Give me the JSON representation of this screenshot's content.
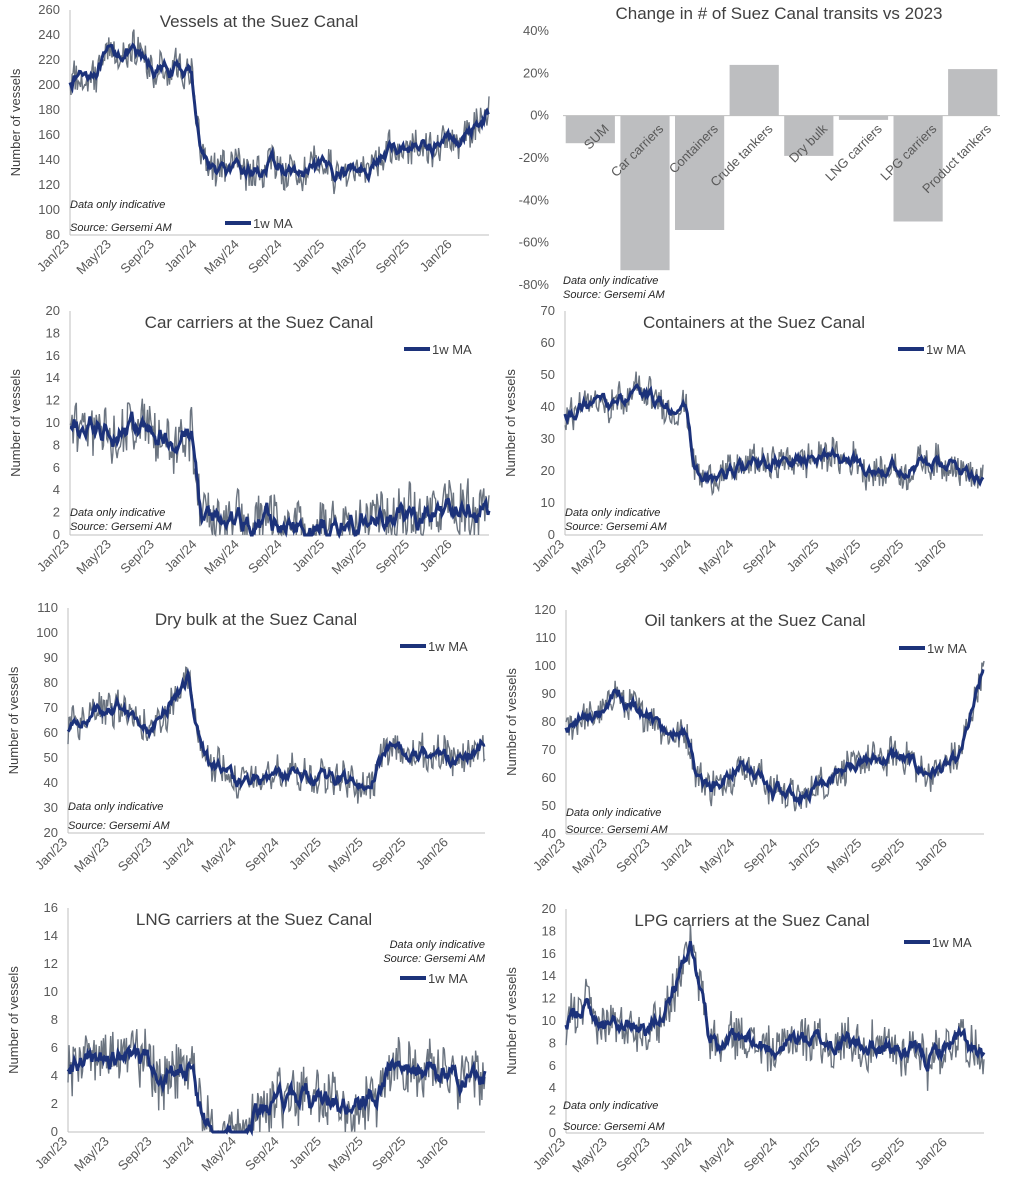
{
  "colors": {
    "raw": "#6b7480",
    "ma": "#1c327a",
    "bar": "#bdbec0",
    "axis": "#bfbfbf",
    "text": "#404040"
  },
  "bar_chart": {
    "type": "bar",
    "title": "Change in # of Suez Canal transits vs 2023",
    "categories": [
      "SUM",
      "Car carriers",
      "Containers",
      "Crude tankers",
      "Dry bulk",
      "LNG carriers",
      "LPG carriers",
      "Product tankers"
    ],
    "values": [
      -13,
      -73,
      -54,
      24,
      -19,
      -2,
      -50,
      22
    ],
    "ylim": [
      -80,
      40
    ],
    "ticks": [
      "40%",
      "20%",
      "0%",
      "-20%",
      "-40%",
      "-60%",
      "-80%"
    ],
    "notes": [
      "Data only indicative",
      "Source: Gersemi AM"
    ]
  },
  "chart_data": [
    {
      "type": "line",
      "title": "Vessels at the Suez Canal",
      "ylabel": "Number of vessels",
      "ylim": [
        80,
        260
      ],
      "yticks": [
        "80",
        "100",
        "120",
        "140",
        "160",
        "180",
        "200",
        "220",
        "240",
        "260"
      ],
      "xticks": [
        "Jan/23",
        "May/23",
        "Sep/23",
        "Jan/24",
        "May/24",
        "Sep/24",
        "Jan/25",
        "May/25",
        "Sep/25",
        "Jan/26"
      ],
      "legend": "1w MA",
      "legend_pos": "bottom-left",
      "notes": [
        "Data only indicative",
        "Source: Gersemi AM"
      ],
      "x_dates": [
        "2023-01-01",
        "2023-03-01",
        "2023-06-01",
        "2023-09-01",
        "2023-12-15",
        "2024-01-10",
        "2024-02-15",
        "2024-05-01",
        "2024-08-01",
        "2024-11-01",
        "2025-02-01",
        "2025-05-01",
        "2025-08-01",
        "2025-11-01",
        "2026-02-01",
        "2026-04-15"
      ],
      "series": [
        {
          "name": "1w MA",
          "values": [
            205,
            212,
            228,
            212,
            210,
            150,
            132,
            128,
            135,
            127,
            132,
            135,
            150,
            152,
            158,
            180
          ]
        }
      ],
      "noise": 14
    },
    {
      "type": "line",
      "title": "Car carriers at the Suez Canal",
      "ylabel": "Number of vessels",
      "ylim": [
        0,
        20
      ],
      "yticks": [
        "0",
        "2",
        "4",
        "6",
        "8",
        "10",
        "12",
        "14",
        "16",
        "18",
        "20"
      ],
      "xticks": [
        "Jan/23",
        "May/23",
        "Sep/23",
        "Jan/24",
        "May/24",
        "Sep/24",
        "Jan/25",
        "May/25",
        "Sep/25",
        "Jan/26"
      ],
      "legend": "1w MA",
      "legend_pos": "top-right",
      "notes": [
        "Data only indicative",
        "Source: Gersemi AM"
      ],
      "x_dates": [
        "2023-01-01",
        "2023-03-01",
        "2023-06-01",
        "2023-09-01",
        "2023-12-15",
        "2024-01-10",
        "2024-02-15",
        "2024-05-01",
        "2024-08-01",
        "2024-11-01",
        "2025-02-01",
        "2025-05-01",
        "2025-08-01",
        "2025-11-01",
        "2026-02-01",
        "2026-04-15"
      ],
      "series": [
        {
          "name": "1w MA",
          "values": [
            9,
            9.5,
            10,
            8.5,
            9,
            2,
            1,
            1,
            0.8,
            0.7,
            0.9,
            1.2,
            1.6,
            1.8,
            2,
            2.2
          ]
        }
      ],
      "noise": 2.5
    },
    {
      "type": "line",
      "title": "Containers at the Suez Canal",
      "ylabel": "Number of vessels",
      "ylim": [
        0,
        70
      ],
      "yticks": [
        "0",
        "10",
        "20",
        "30",
        "40",
        "50",
        "60",
        "70"
      ],
      "xticks": [
        "Jan/23",
        "May/23",
        "Sep/23",
        "Jan/24",
        "May/24",
        "Sep/24",
        "Jan/25",
        "May/25",
        "Sep/25",
        "Jan/26"
      ],
      "legend": "1w MA",
      "legend_pos": "top-right",
      "notes": [
        "Data only indicative",
        "Source: Gersemi AM"
      ],
      "x_dates": [
        "2023-01-01",
        "2023-03-01",
        "2023-06-01",
        "2023-09-01",
        "2023-12-15",
        "2024-01-10",
        "2024-02-15",
        "2024-05-01",
        "2024-08-01",
        "2024-11-01",
        "2025-02-01",
        "2025-05-01",
        "2025-08-01",
        "2025-11-01",
        "2026-02-01",
        "2026-04-15"
      ],
      "series": [
        {
          "name": "1w MA",
          "values": [
            37,
            40,
            42,
            43,
            38,
            20,
            17,
            20,
            22,
            23,
            25,
            22,
            21,
            22,
            21,
            19
          ]
        }
      ],
      "noise": 5
    },
    {
      "type": "line",
      "title": "Dry bulk at the Suez Canal",
      "ylabel": "Number of vessels",
      "ylim": [
        20,
        110
      ],
      "yticks": [
        "20",
        "30",
        "40",
        "50",
        "60",
        "70",
        "80",
        "90",
        "100",
        "110"
      ],
      "xticks": [
        "Jan/23",
        "May/23",
        "Sep/23",
        "Jan/24",
        "May/24",
        "Sep/24",
        "Jan/25",
        "May/25",
        "Sep/25",
        "Jan/26"
      ],
      "legend": "1w MA",
      "legend_pos": "top-right",
      "notes": [
        "Data only indicative",
        "Source: Gersemi AM"
      ],
      "x_dates": [
        "2023-01-01",
        "2023-03-01",
        "2023-06-01",
        "2023-09-01",
        "2023-12-15",
        "2024-01-10",
        "2024-02-15",
        "2024-05-01",
        "2024-08-01",
        "2024-11-01",
        "2025-02-01",
        "2025-05-01",
        "2025-08-01",
        "2025-11-01",
        "2026-02-01",
        "2026-04-15"
      ],
      "series": [
        {
          "name": "1w MA",
          "values": [
            60,
            68,
            72,
            62,
            82,
            60,
            48,
            40,
            42,
            42,
            40,
            40,
            55,
            52,
            50,
            55
          ]
        }
      ],
      "noise": 7
    },
    {
      "type": "line",
      "title": "Oil tankers at the Suez Canal",
      "ylabel": "Number of vessels",
      "ylim": [
        40,
        120
      ],
      "yticks": [
        "40",
        "50",
        "60",
        "70",
        "80",
        "90",
        "100",
        "110",
        "120"
      ],
      "xticks": [
        "Jan/23",
        "May/23",
        "Sep/23",
        "Jan/24",
        "May/24",
        "Sep/24",
        "Jan/25",
        "May/25",
        "Sep/25",
        "Jan/26"
      ],
      "legend": "1w MA",
      "legend_pos": "top-right",
      "notes": [
        "Data only indicative",
        "Source: Gersemi AM"
      ],
      "x_dates": [
        "2023-01-01",
        "2023-03-01",
        "2023-06-01",
        "2023-09-01",
        "2023-12-15",
        "2024-01-10",
        "2024-02-15",
        "2024-05-01",
        "2024-08-01",
        "2024-11-01",
        "2025-02-01",
        "2025-05-01",
        "2025-08-01",
        "2025-11-01",
        "2026-02-01",
        "2026-04-15"
      ],
      "series": [
        {
          "name": "1w MA",
          "values": [
            78,
            82,
            88,
            82,
            75,
            62,
            55,
            65,
            57,
            52,
            62,
            65,
            68,
            62,
            65,
            98
          ]
        }
      ],
      "noise": 6
    },
    {
      "type": "line",
      "title": "LNG carriers at the Suez Canal",
      "ylabel": "Number of vessels",
      "ylim": [
        0,
        16
      ],
      "yticks": [
        "0",
        "2",
        "4",
        "6",
        "8",
        "10",
        "12",
        "14",
        "16"
      ],
      "xticks": [
        "Jan/23",
        "May/23",
        "Sep/23",
        "Jan/24",
        "May/24",
        "Sep/24",
        "Jan/25",
        "May/25",
        "Sep/25",
        "Jan/26"
      ],
      "legend": "1w MA",
      "legend_pos": "top-right",
      "notes": [
        "Data only indicative",
        "Source: Gersemi AM"
      ],
      "x_dates": [
        "2023-01-01",
        "2023-03-01",
        "2023-06-01",
        "2023-09-01",
        "2023-12-15",
        "2024-01-10",
        "2024-02-15",
        "2024-05-01",
        "2024-08-01",
        "2024-11-01",
        "2025-02-01",
        "2025-05-01",
        "2025-08-01",
        "2025-11-01",
        "2026-02-01",
        "2026-04-15"
      ],
      "series": [
        {
          "name": "1w MA",
          "values": [
            4.5,
            5,
            5,
            4.5,
            4.5,
            2,
            0,
            0.2,
            2,
            2.5,
            1.6,
            2,
            4.8,
            4.5,
            3.8,
            4
          ]
        }
      ],
      "noise": 2
    },
    {
      "type": "line",
      "title": "LPG carriers at the Suez Canal",
      "ylabel": "Number of vessels",
      "ylim": [
        0,
        20
      ],
      "yticks": [
        "0",
        "2",
        "4",
        "6",
        "8",
        "10",
        "12",
        "14",
        "16",
        "18",
        "20"
      ],
      "xticks": [
        "Jan/23",
        "May/23",
        "Sep/23",
        "Jan/24",
        "May/24",
        "Sep/24",
        "Jan/25",
        "May/25",
        "Sep/25",
        "Jan/26"
      ],
      "legend": "1w MA",
      "legend_pos": "top-right",
      "notes": [
        "Data only indicative",
        "Source: Gersemi AM"
      ],
      "x_dates": [
        "2023-01-01",
        "2023-03-01",
        "2023-06-01",
        "2023-09-01",
        "2023-11-20",
        "2023-12-25",
        "2024-02-15",
        "2024-05-01",
        "2024-08-01",
        "2024-11-01",
        "2025-02-01",
        "2025-05-01",
        "2025-08-01",
        "2025-11-01",
        "2026-02-01",
        "2026-04-15"
      ],
      "series": [
        {
          "name": "1w MA",
          "values": [
            10,
            11,
            9.5,
            9.5,
            14,
            16,
            9,
            8,
            7.5,
            8.5,
            8,
            8,
            7.5,
            6.5,
            8.5,
            6
          ]
        }
      ],
      "noise": 2
    }
  ]
}
